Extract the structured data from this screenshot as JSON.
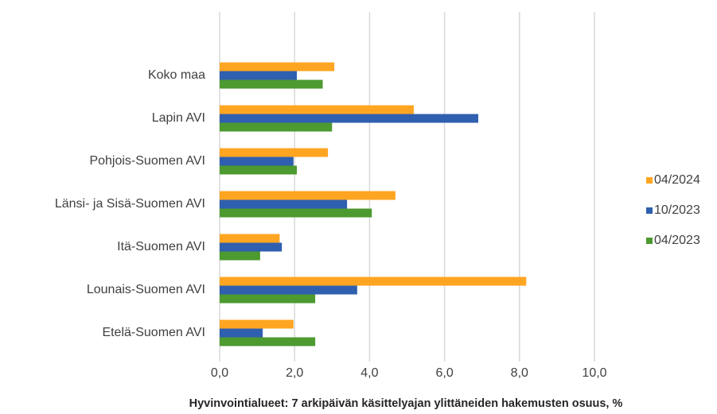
{
  "chart_data": {
    "type": "hbar",
    "xlabel": "Hyvinvointialueet: 7 arkipäivän käsittelyajan ylittäneiden hakemusten osuus, %",
    "categories": [
      "Koko maa",
      "Lapin AVI",
      "Pohjois-Suomen AVI",
      "Länsi- ja Sisä-Suomen AVI",
      "Itä-Suomen AVI",
      "Lounais-Suomen AVI",
      "Etelä-Suomen AVI"
    ],
    "series": [
      {
        "name": "04/2024",
        "color": "#ffa521",
        "values": [
          3.06,
          5.18,
          2.89,
          4.69,
          1.6,
          8.18,
          1.97
        ]
      },
      {
        "name": "10/2023",
        "color": "#2f5faf",
        "values": [
          2.06,
          6.9,
          1.97,
          3.4,
          1.66,
          3.67,
          1.15
        ]
      },
      {
        "name": "04/2023",
        "color": "#4c9a30",
        "values": [
          2.75,
          3.0,
          2.06,
          4.06,
          1.08,
          2.55,
          2.55
        ]
      }
    ],
    "xlim": [
      0,
      10
    ],
    "xticks": [
      {
        "value": 0,
        "label": "0,0"
      },
      {
        "value": 2,
        "label": "2,0"
      },
      {
        "value": 4,
        "label": "4,0"
      },
      {
        "value": 6,
        "label": "6,0"
      },
      {
        "value": 8,
        "label": "8,0"
      },
      {
        "value": 10,
        "label": "10,0"
      }
    ],
    "grid": true,
    "legend": "right"
  }
}
